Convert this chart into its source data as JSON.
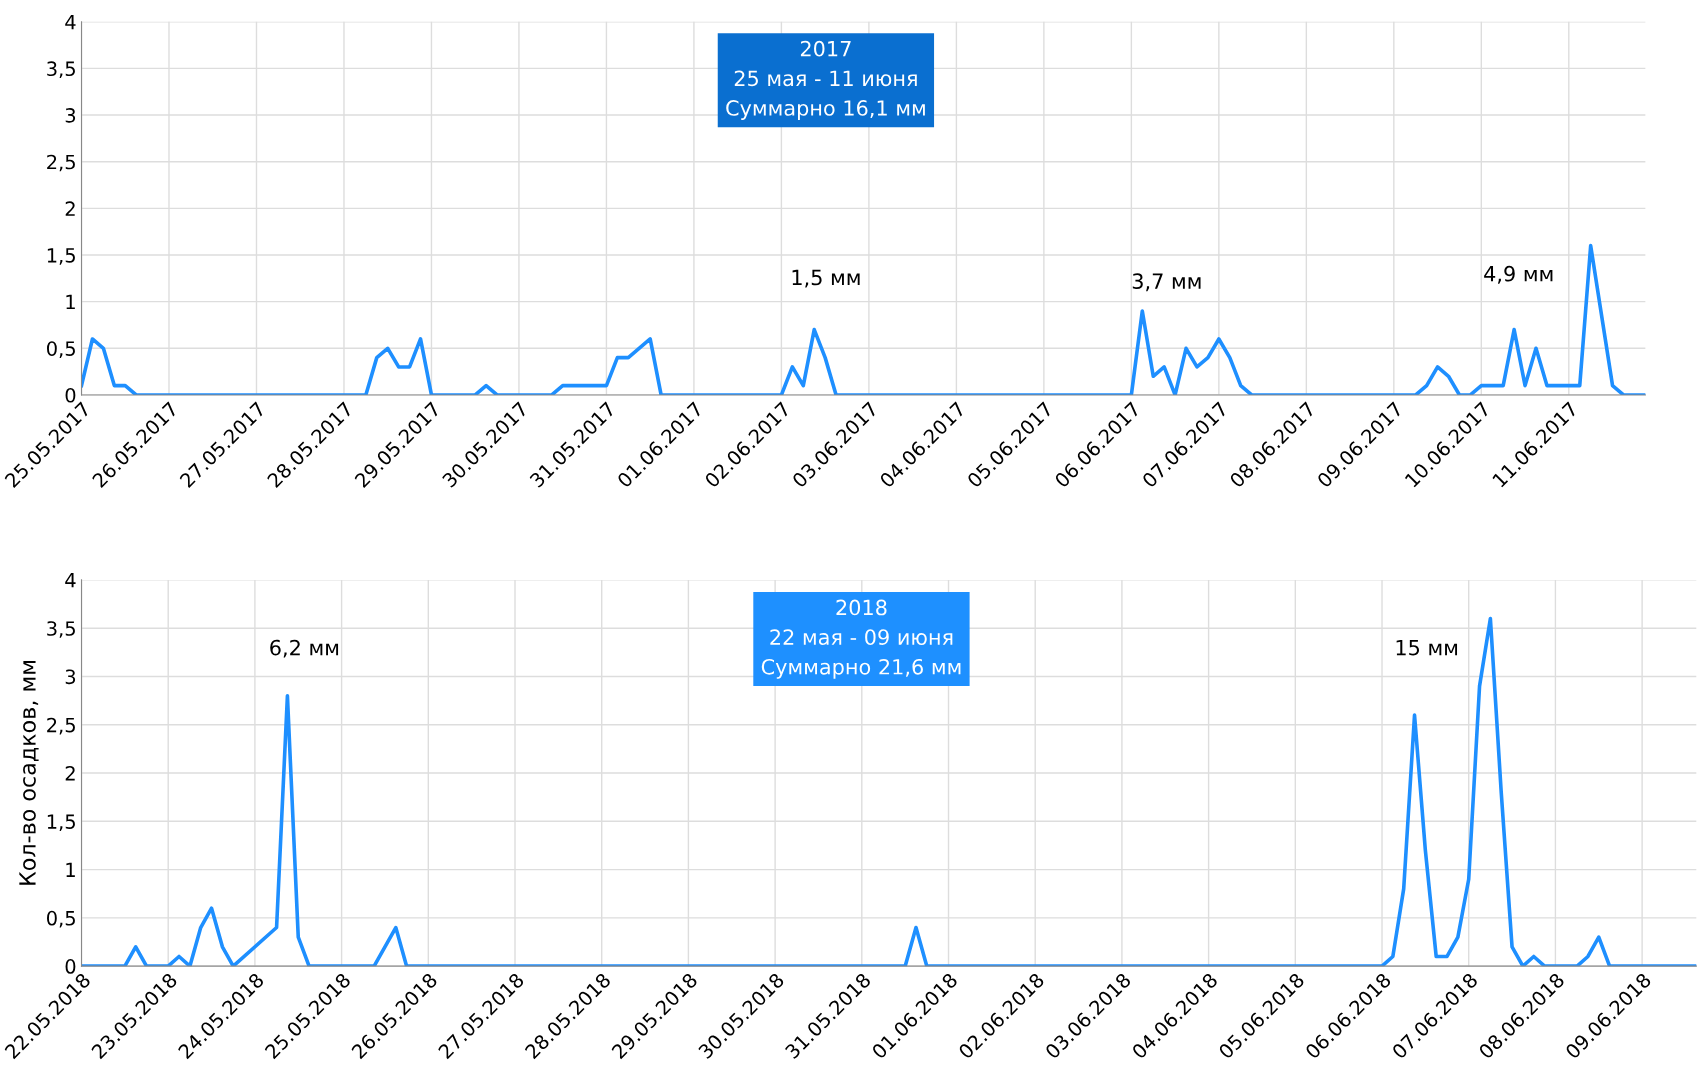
{
  "chart_data": [
    {
      "type": "line",
      "title": "2017\n25 мая - 11 июня\nСуммарно 16,1 мм",
      "series": [
        {
          "color": "#1e8fff",
          "x": [
            "2017-05-25T00:00",
            "2017-05-25T03:00",
            "2017-05-25T06:00",
            "2017-05-25T09:00",
            "2017-05-25T12:00",
            "2017-05-25T15:00",
            "2017-05-28T06:00",
            "2017-05-28T09:00",
            "2017-05-28T12:00",
            "2017-05-28T15:00",
            "2017-05-28T18:00",
            "2017-05-28T21:00",
            "2017-05-29T00:00",
            "2017-05-29T12:00",
            "2017-05-29T15:00",
            "2017-05-29T18:00",
            "2017-05-30T09:00",
            "2017-05-30T12:00",
            "2017-05-31T00:00",
            "2017-05-31T03:00",
            "2017-05-31T06:00",
            "2017-05-31T12:00",
            "2017-05-31T15:00",
            "2017-06-02T00:00",
            "2017-06-02T03:00",
            "2017-06-02T06:00",
            "2017-06-02T09:00",
            "2017-06-02T12:00",
            "2017-06-02T15:00",
            "2017-06-06T00:00",
            "2017-06-06T03:00",
            "2017-06-06T06:00",
            "2017-06-06T09:00",
            "2017-06-06T12:00",
            "2017-06-06T15:00",
            "2017-06-06T18:00",
            "2017-06-06T21:00",
            "2017-06-07T00:00",
            "2017-06-07T03:00",
            "2017-06-07T06:00",
            "2017-06-07T09:00",
            "2017-06-09T06:00",
            "2017-06-09T09:00",
            "2017-06-09T12:00",
            "2017-06-09T15:00",
            "2017-06-09T18:00",
            "2017-06-09T21:00",
            "2017-06-10T00:00",
            "2017-06-10T06:00",
            "2017-06-10T09:00",
            "2017-06-10T12:00",
            "2017-06-10T15:00",
            "2017-06-10T18:00",
            "2017-06-11T03:00",
            "2017-06-11T06:00",
            "2017-06-11T12:00",
            "2017-06-11T15:00",
            "2017-06-11T21:00"
          ],
          "values": [
            0.1,
            0.6,
            0.5,
            0.1,
            0.1,
            0,
            0,
            0.4,
            0.5,
            0.3,
            0.3,
            0.6,
            0,
            0,
            0.1,
            0,
            0,
            0.1,
            0.1,
            0.4,
            0.4,
            0.6,
            0,
            0,
            0.3,
            0.1,
            0.7,
            0.4,
            0,
            0,
            0.9,
            0.2,
            0.3,
            0,
            0.5,
            0.3,
            0.4,
            0.6,
            0.4,
            0.1,
            0,
            0,
            0.1,
            0.3,
            0.2,
            0,
            0,
            0.1,
            0.1,
            0.7,
            0.1,
            0.5,
            0.1,
            0.1,
            1.6,
            0.1,
            0,
            0
          ]
        }
      ],
      "annotations": [
        "1,5 мм",
        "3,7 мм",
        "4,9 мм"
      ],
      "xlim": [
        "2017-05-25T00:00",
        "2017-06-11T21:00"
      ],
      "xticks": [
        {
          "value": "2017-05-25",
          "label": "25.05.2017"
        },
        {
          "value": "2017-05-26",
          "label": "26.05.2017"
        },
        {
          "value": "2017-05-27",
          "label": "27.05.2017"
        },
        {
          "value": "2017-05-28",
          "label": "28.05.2017"
        },
        {
          "value": "2017-05-29",
          "label": "29.05.2017"
        },
        {
          "value": "2017-05-30",
          "label": "30.05.2017"
        },
        {
          "value": "2017-05-31",
          "label": "31.05.2017"
        },
        {
          "value": "2017-06-01",
          "label": "01.06.2017"
        },
        {
          "value": "2017-06-02",
          "label": "02.06.2017"
        },
        {
          "value": "2017-06-03",
          "label": "03.06.2017"
        },
        {
          "value": "2017-06-04",
          "label": "04.06.2017"
        },
        {
          "value": "2017-06-05",
          "label": "05.06.2017"
        },
        {
          "value": "2017-06-06",
          "label": "06.06.2017"
        },
        {
          "value": "2017-06-07",
          "label": "07.06.2017"
        },
        {
          "value": "2017-06-08",
          "label": "08.06.2017"
        },
        {
          "value": "2017-06-09",
          "label": "09.06.2017"
        },
        {
          "value": "2017-06-10",
          "label": "10.06.2017"
        },
        {
          "value": "2017-06-11",
          "label": "11.06.2017"
        }
      ],
      "ylim": [
        0,
        4
      ],
      "yticks": [
        0,
        {
          "value": 0.5,
          "label": "0,5"
        },
        1,
        {
          "value": 1.5,
          "label": "1,5"
        },
        2,
        {
          "value": 2.5,
          "label": "2,5"
        },
        3,
        {
          "value": 3.5,
          "label": "3,5"
        },
        4
      ],
      "grid": true,
      "legend": false,
      "marker": "none",
      "line_style": "solid"
    },
    {
      "type": "line",
      "title": "2018\n22 мая - 09 июня\nСуммарно 21,6 мм",
      "ylabel": "Кол-во осадков, мм",
      "series": [
        {
          "color": "#1e8fff",
          "x": [
            "2018-05-22T00:00",
            "2018-05-22T12:00",
            "2018-05-22T15:00",
            "2018-05-22T18:00",
            "2018-05-23T00:00",
            "2018-05-23T03:00",
            "2018-05-23T06:00",
            "2018-05-23T09:00",
            "2018-05-23T12:00",
            "2018-05-23T15:00",
            "2018-05-23T18:00",
            "2018-05-24T06:00",
            "2018-05-24T09:00",
            "2018-05-24T12:00",
            "2018-05-24T15:00",
            "2018-05-25T09:00",
            "2018-05-25T15:00",
            "2018-05-25T18:00",
            "2018-05-31T12:00",
            "2018-05-31T15:00",
            "2018-05-31T18:00",
            "2018-06-06T00:00",
            "2018-06-06T03:00",
            "2018-06-06T06:00",
            "2018-06-06T09:00",
            "2018-06-06T12:00",
            "2018-06-06T15:00",
            "2018-06-06T18:00",
            "2018-06-06T21:00",
            "2018-06-07T00:00",
            "2018-06-07T03:00",
            "2018-06-07T06:00",
            "2018-06-07T09:00",
            "2018-06-07T12:00",
            "2018-06-07T15:00",
            "2018-06-07T18:00",
            "2018-06-07T21:00",
            "2018-06-08T06:00",
            "2018-06-08T09:00",
            "2018-06-08T12:00",
            "2018-06-08T15:00",
            "2018-06-09T15:00"
          ],
          "values": [
            0,
            0,
            0.2,
            0,
            0,
            0.1,
            0,
            0.4,
            0.6,
            0.2,
            0,
            0.4,
            2.8,
            0.3,
            0,
            0,
            0.4,
            0,
            0,
            0.4,
            0,
            0,
            0.1,
            0.8,
            2.6,
            1.2,
            0.1,
            0.1,
            0.3,
            0.9,
            2.9,
            3.6,
            1.8,
            0.2,
            0,
            0.1,
            0,
            0,
            0.1,
            0.3,
            0,
            0
          ]
        }
      ],
      "annotations": [
        "6,2 мм",
        "15 мм"
      ],
      "xlim": [
        "2018-05-22T00:00",
        "2018-06-09T15:00"
      ],
      "xticks": [
        {
          "value": "2018-05-22",
          "label": "22.05.2018"
        },
        {
          "value": "2018-05-23",
          "label": "23.05.2018"
        },
        {
          "value": "2018-05-24",
          "label": "24.05.2018"
        },
        {
          "value": "2018-05-25",
          "label": "25.05.2018"
        },
        {
          "value": "2018-05-26",
          "label": "26.05.2018"
        },
        {
          "value": "2018-05-27",
          "label": "27.05.2018"
        },
        {
          "value": "2018-05-28",
          "label": "28.05.2018"
        },
        {
          "value": "2018-05-29",
          "label": "29.05.2018"
        },
        {
          "value": "2018-05-30",
          "label": "30.05.2018"
        },
        {
          "value": "2018-05-31",
          "label": "31.05.2018"
        },
        {
          "value": "2018-06-01",
          "label": "01.06.2018"
        },
        {
          "value": "2018-06-02",
          "label": "02.06.2018"
        },
        {
          "value": "2018-06-03",
          "label": "03.06.2018"
        },
        {
          "value": "2018-06-04",
          "label": "04.06.2018"
        },
        {
          "value": "2018-06-05",
          "label": "05.06.2018"
        },
        {
          "value": "2018-06-06",
          "label": "06.06.2018"
        },
        {
          "value": "2018-06-07",
          "label": "07.06.2018"
        },
        {
          "value": "2018-06-08",
          "label": "08.06.2018"
        },
        {
          "value": "2018-06-09",
          "label": "09.06.2018"
        }
      ],
      "ylim": [
        0,
        4
      ],
      "yticks": [
        0,
        {
          "value": 0.5,
          "label": "0,5"
        },
        1,
        {
          "value": 1.5,
          "label": "1,5"
        },
        2,
        {
          "value": 2.5,
          "label": "2,5"
        },
        3,
        {
          "value": 3.5,
          "label": "3,5"
        },
        4
      ],
      "grid": true,
      "legend": false,
      "marker": "none",
      "line_style": "solid"
    }
  ]
}
